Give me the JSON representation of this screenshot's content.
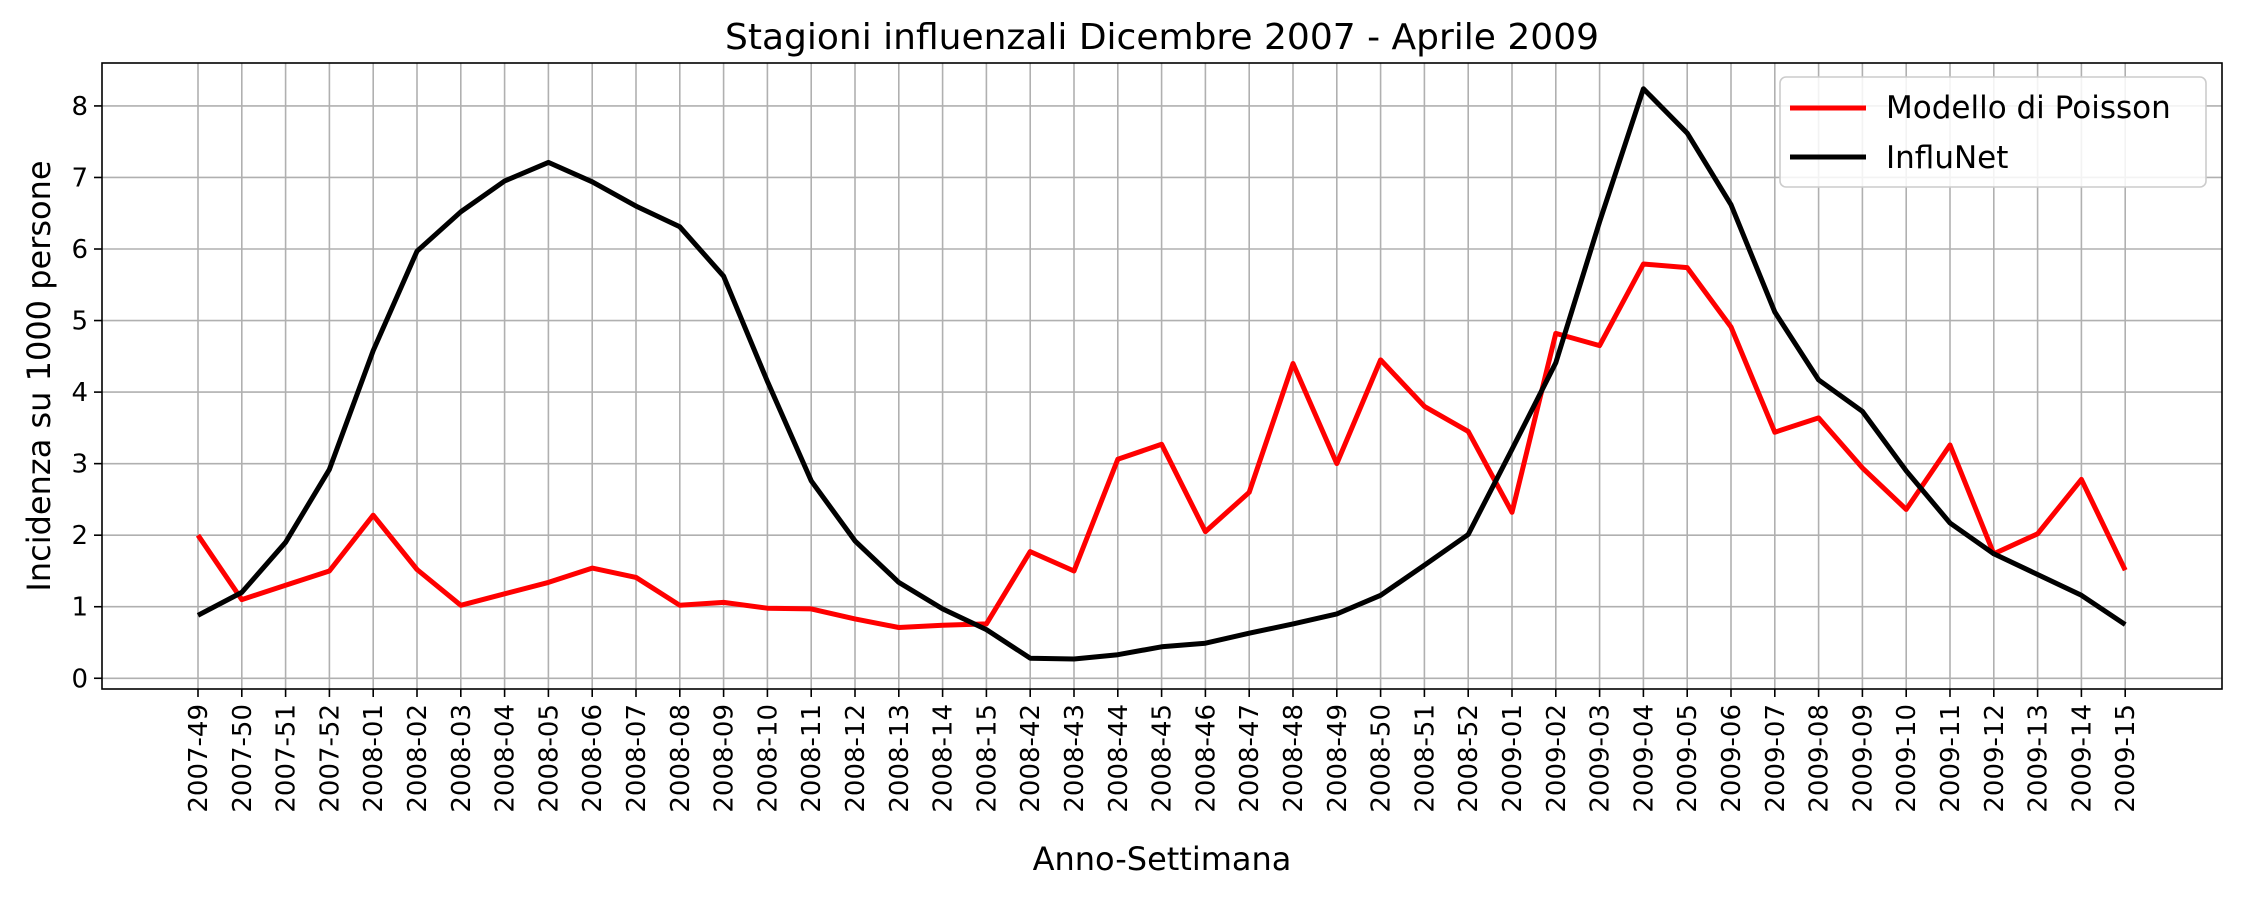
{
  "chart_data": {
    "type": "line",
    "title": "Stagioni influenzali Dicembre 2007 - Aprile 2009",
    "xlabel": "Anno-Settimana",
    "ylabel": "Incidenza su 1000 persone",
    "ylim": [
      -0.15,
      8.6
    ],
    "yticks": [
      0,
      1,
      2,
      3,
      4,
      5,
      6,
      7,
      8
    ],
    "grid": true,
    "legend_position": "top-right",
    "categories": [
      "2007-49",
      "2007-50",
      "2007-51",
      "2007-52",
      "2008-01",
      "2008-02",
      "2008-03",
      "2008-04",
      "2008-05",
      "2008-06",
      "2008-07",
      "2008-08",
      "2008-09",
      "2008-10",
      "2008-11",
      "2008-12",
      "2008-13",
      "2008-14",
      "2008-15",
      "2008-42",
      "2008-43",
      "2008-44",
      "2008-45",
      "2008-46",
      "2008-47",
      "2008-48",
      "2008-49",
      "2008-50",
      "2008-51",
      "2008-52",
      "2009-01",
      "2009-02",
      "2009-03",
      "2009-04",
      "2009-05",
      "2009-06",
      "2009-07",
      "2009-08",
      "2009-09",
      "2009-10",
      "2009-11",
      "2009-12",
      "2009-13",
      "2009-14",
      "2009-15"
    ],
    "series": [
      {
        "name": "Modello di Poisson",
        "color": "#ff0000",
        "values": [
          2.0,
          1.1,
          1.3,
          1.5,
          2.28,
          1.52,
          1.02,
          1.18,
          1.34,
          1.54,
          1.41,
          1.02,
          1.06,
          0.98,
          0.97,
          0.83,
          0.71,
          0.74,
          0.76,
          1.77,
          1.5,
          3.06,
          3.27,
          2.05,
          2.6,
          4.4,
          3.0,
          4.45,
          3.8,
          3.45,
          2.32,
          4.82,
          4.65,
          5.79,
          5.74,
          4.91,
          3.44,
          3.64,
          2.94,
          2.36,
          3.26,
          1.74,
          2.02,
          2.78,
          1.51
        ]
      },
      {
        "name": "InfluNet",
        "color": "#000000",
        "values": [
          0.88,
          1.2,
          1.9,
          2.92,
          4.58,
          5.97,
          6.52,
          6.95,
          7.21,
          6.94,
          6.6,
          6.31,
          5.62,
          4.15,
          2.76,
          1.92,
          1.34,
          0.97,
          0.68,
          0.28,
          0.27,
          0.33,
          0.44,
          0.49,
          0.63,
          0.76,
          0.9,
          1.16,
          1.58,
          2.01,
          3.2,
          4.41,
          6.38,
          8.24,
          7.62,
          6.62,
          5.12,
          4.17,
          3.73,
          2.9,
          2.17,
          1.74,
          1.45,
          1.16,
          0.75
        ]
      }
    ]
  }
}
